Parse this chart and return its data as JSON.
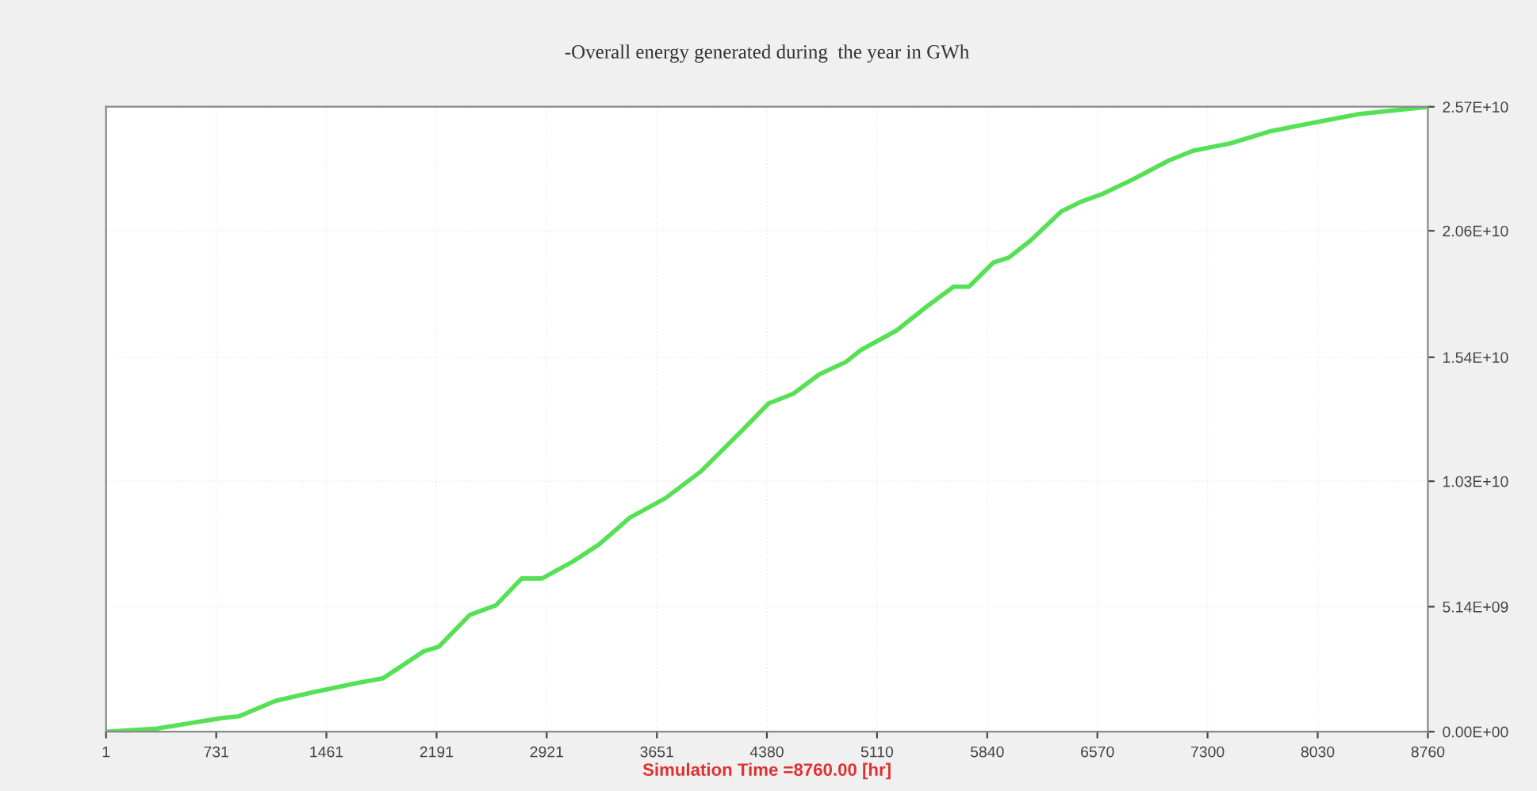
{
  "chart_data": {
    "type": "line",
    "title": "-Overall energy generated during  the year in GWh",
    "xlabel": "Simulation Time =8760.00 [hr]",
    "xlim": [
      1,
      8760
    ],
    "xticks": [
      1,
      731,
      1461,
      2191,
      2921,
      3651,
      4380,
      5110,
      5840,
      6570,
      7300,
      8030,
      8760
    ],
    "ylim": [
      0,
      25700000000.0
    ],
    "yticks": [
      {
        "value": 0,
        "label": "0.00E+00"
      },
      {
        "value": 5140000000.0,
        "label": "5.14E+09"
      },
      {
        "value": 10300000000.0,
        "label": "1.03E+10"
      },
      {
        "value": 15400000000.0,
        "label": "1.54E+10"
      },
      {
        "value": 20600000000.0,
        "label": "2.06E+10"
      },
      {
        "value": 25700000000.0,
        "label": "2.57E+10"
      }
    ],
    "grid": true,
    "marker": "none",
    "line_style": "solid",
    "series": [
      {
        "color": "#55e055",
        "x": [
          1,
          338,
          777,
          880,
          1124,
          1359,
          1665,
          1837,
          2105,
          2207,
          2411,
          2585,
          2755,
          2890,
          3095,
          3268,
          3472,
          3707,
          3942,
          4218,
          4391,
          4555,
          4728,
          4902,
          5004,
          5239,
          5443,
          5617,
          5719,
          5882,
          5984,
          6127,
          6331,
          6464,
          6597,
          6801,
          7046,
          7209,
          7454,
          7719,
          7964,
          8301,
          8760
        ],
        "values": [
          0,
          130000000.0,
          570000000.0,
          630000000.0,
          1270000000.0,
          1600000000.0,
          2000000000.0,
          2200000000.0,
          3300000000.0,
          3500000000.0,
          4800000000.0,
          5200000000.0,
          6300000000.0,
          6300000000.0,
          7000000000.0,
          7700000000.0,
          8800000000.0,
          9600000000.0,
          10700000000.0,
          12400000000.0,
          13500000000.0,
          13900000000.0,
          14700000000.0,
          15200000000.0,
          15700000000.0,
          16500000000.0,
          17500000000.0,
          18300000000.0,
          18300000000.0,
          19300000000.0,
          19500000000.0,
          20200000000.0,
          21400000000.0,
          21800000000.0,
          22100000000.0,
          22700000000.0,
          23500000000.0,
          23900000000.0,
          24200000000.0,
          24700000000.0,
          25000000000.0,
          25400000000.0,
          25700000000.0
        ]
      }
    ]
  }
}
